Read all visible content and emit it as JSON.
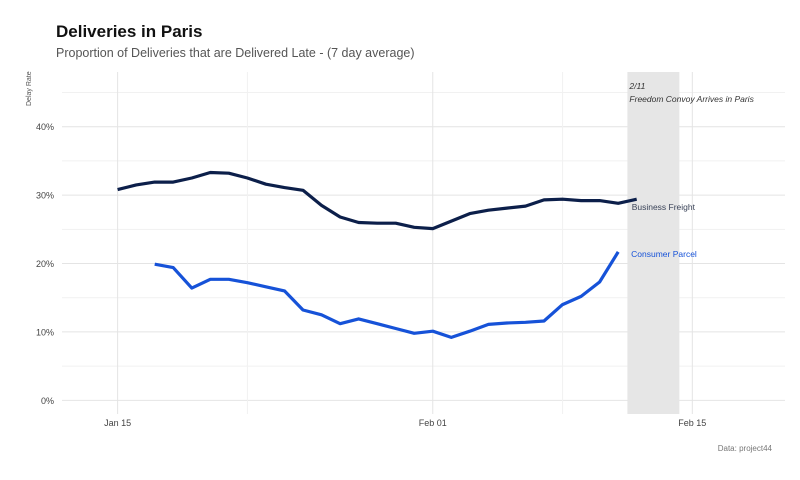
{
  "chart_data": {
    "type": "line",
    "title": "Deliveries in Paris",
    "subtitle": "Proportion of Deliveries that are Delivered Late - (7 day average)",
    "ylabel": "Delay Rate",
    "caption": "Data: project44",
    "x_ticks": [
      "Jan 15",
      "Feb 01",
      "Feb 15"
    ],
    "y_ticks": [
      "0%",
      "10%",
      "20%",
      "30%",
      "40%"
    ],
    "ylim": [
      0,
      0.45
    ],
    "grid": true,
    "annotation": {
      "line1": "2/11",
      "line2": "Freedom Convoy Arrives in Paris",
      "shade_start": "2022-02-11",
      "shade_end": "2022-02-15"
    },
    "series": [
      {
        "name": "Business Freight",
        "color": "#0c1f4a",
        "dates": [
          "2022-01-15",
          "2022-01-16",
          "2022-01-17",
          "2022-01-18",
          "2022-01-19",
          "2022-01-20",
          "2022-01-21",
          "2022-01-22",
          "2022-01-23",
          "2022-01-24",
          "2022-01-25",
          "2022-01-26",
          "2022-01-27",
          "2022-01-28",
          "2022-01-29",
          "2022-01-30",
          "2022-01-31",
          "2022-02-01",
          "2022-02-02",
          "2022-02-03",
          "2022-02-04",
          "2022-02-05",
          "2022-02-06",
          "2022-02-07",
          "2022-02-08",
          "2022-02-09",
          "2022-02-10",
          "2022-02-11",
          "2022-02-12"
        ],
        "values": [
          0.308,
          0.315,
          0.319,
          0.319,
          0.325,
          0.333,
          0.332,
          0.325,
          0.316,
          0.311,
          0.307,
          0.285,
          0.268,
          0.26,
          0.259,
          0.259,
          0.253,
          0.251,
          0.262,
          0.273,
          0.278,
          0.281,
          0.284,
          0.293,
          0.294,
          0.292,
          0.292,
          0.288,
          0.294
        ]
      },
      {
        "name": "Consumer Parcel",
        "color": "#1652d8",
        "dates": [
          "2022-01-17",
          "2022-01-18",
          "2022-01-19",
          "2022-01-20",
          "2022-01-21",
          "2022-01-22",
          "2022-01-23",
          "2022-01-24",
          "2022-01-25",
          "2022-01-26",
          "2022-01-27",
          "2022-01-28",
          "2022-01-29",
          "2022-01-30",
          "2022-01-31",
          "2022-02-01",
          "2022-02-02",
          "2022-02-03",
          "2022-02-04",
          "2022-02-05",
          "2022-02-06",
          "2022-02-07",
          "2022-02-08",
          "2022-02-09",
          "2022-02-10",
          "2022-02-11"
        ],
        "values": [
          0.199,
          0.194,
          0.164,
          0.177,
          0.177,
          0.172,
          0.166,
          0.16,
          0.132,
          0.125,
          0.112,
          0.119,
          0.112,
          0.105,
          0.098,
          0.101,
          0.092,
          0.101,
          0.111,
          0.113,
          0.114,
          0.116,
          0.14,
          0.152,
          0.173,
          0.217
        ]
      }
    ]
  }
}
